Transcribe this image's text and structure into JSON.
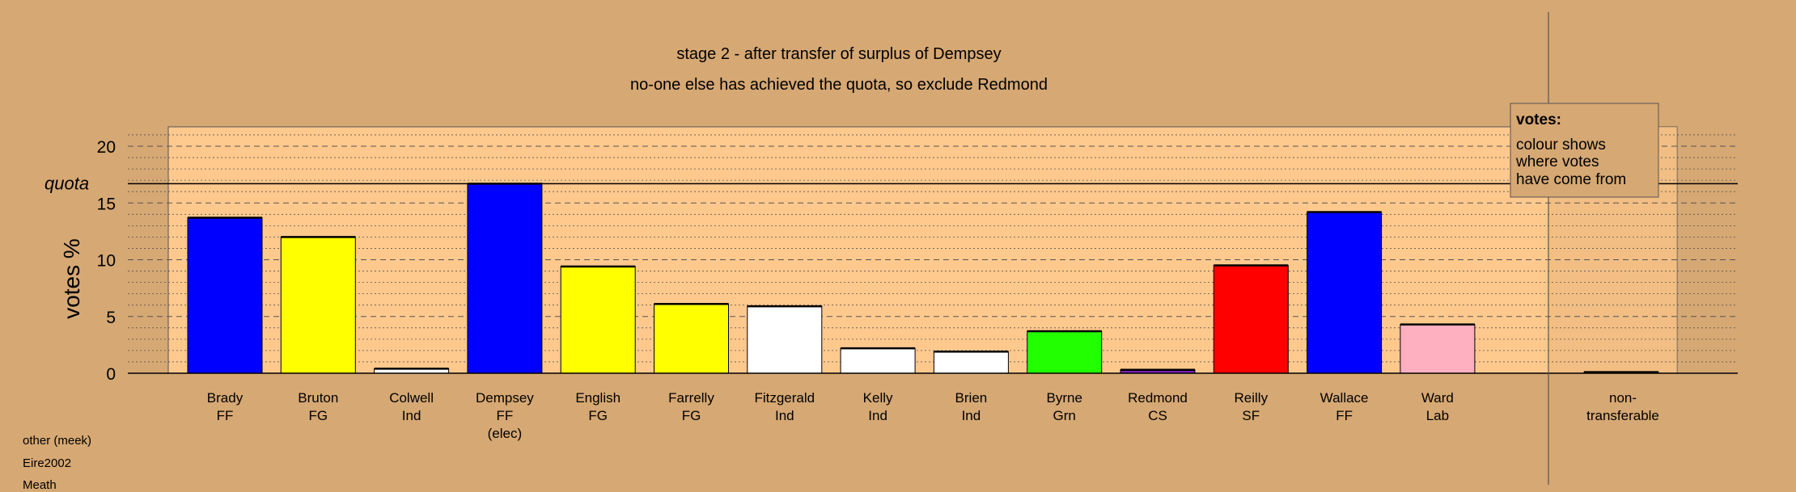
{
  "chart_data": {
    "type": "bar",
    "title": "stage 2 - after transfer of surplus of Dempsey",
    "subtitle": "no-one else has achieved the quota, so exclude Redmond",
    "ylabel": "votes %",
    "ylim": [
      0,
      20
    ],
    "yticks": [
      "0",
      "5",
      "10",
      "15",
      "20"
    ],
    "quota_label": "quota",
    "quota": 16.7,
    "grid": true,
    "categories": [
      {
        "name": "Brady",
        "party": "FF",
        "note": "",
        "value": 13.7,
        "color": "#0000ff"
      },
      {
        "name": "Bruton",
        "party": "FG",
        "note": "",
        "value": 12.0,
        "color": "#ffff00"
      },
      {
        "name": "Colwell",
        "party": "Ind",
        "note": "",
        "value": 0.4,
        "color": "#ffffff"
      },
      {
        "name": "Dempsey",
        "party": "FF",
        "note": "(elec)",
        "value": 16.7,
        "color": "#0000ff"
      },
      {
        "name": "English",
        "party": "FG",
        "note": "",
        "value": 9.4,
        "color": "#ffff00"
      },
      {
        "name": "Farrelly",
        "party": "FG",
        "note": "",
        "value": 6.1,
        "color": "#ffff00"
      },
      {
        "name": "Fitzgerald",
        "party": "Ind",
        "note": "",
        "value": 5.9,
        "color": "#ffffff"
      },
      {
        "name": "Kelly",
        "party": "Ind",
        "note": "",
        "value": 2.2,
        "color": "#ffffff"
      },
      {
        "name": "Brien",
        "party": "Ind",
        "note": "",
        "value": 1.9,
        "color": "#ffffff"
      },
      {
        "name": "Byrne",
        "party": "Grn",
        "note": "",
        "value": 3.7,
        "color": "#22ff00"
      },
      {
        "name": "Redmond",
        "party": "CS",
        "note": "",
        "value": 0.3,
        "color": "#7a1fb0"
      },
      {
        "name": "Reilly",
        "party": "SF",
        "note": "",
        "value": 9.5,
        "color": "#ff0000"
      },
      {
        "name": "Wallace",
        "party": "FF",
        "note": "",
        "value": 14.2,
        "color": "#0000ff"
      },
      {
        "name": "Ward",
        "party": "Lab",
        "note": "",
        "value": 4.3,
        "color": "#ffb0c0"
      }
    ],
    "nontransferable": {
      "name": "non-",
      "party": "transferable",
      "value": 0.1,
      "color": "#000000"
    },
    "legend": {
      "title": "votes:",
      "lines": [
        "colour shows",
        "where votes",
        "have come from"
      ],
      "placement": "top-right"
    },
    "colors": {
      "background": "#d6a873",
      "panel": "#ffc98d",
      "panel_right": "#e8b57c",
      "axis": "#000000"
    }
  },
  "footnotes": [
    "other (meek)",
    "Eire2002",
    "Meath"
  ]
}
